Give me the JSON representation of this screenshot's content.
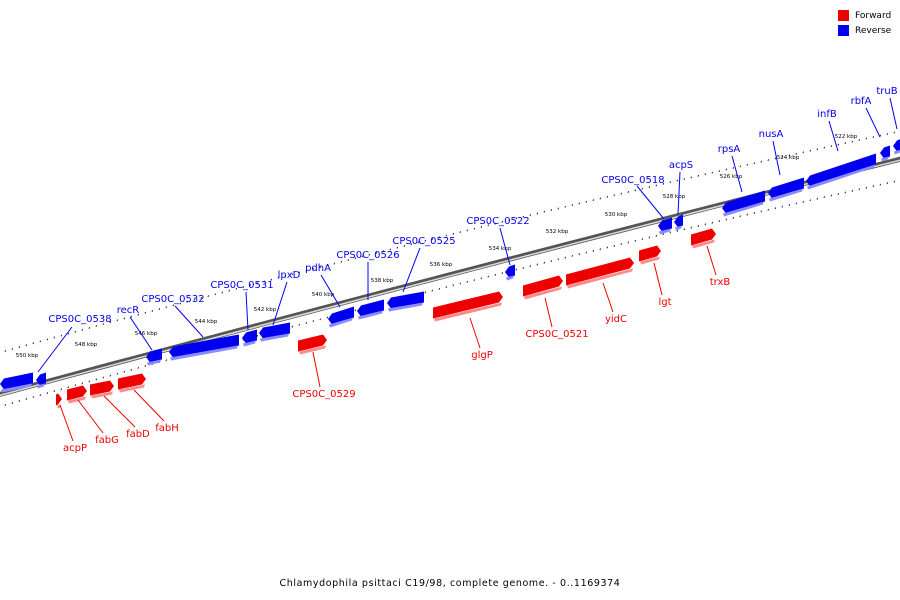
{
  "legend": {
    "forward": {
      "label": "Forward",
      "color": "#ee0000"
    },
    "reverse": {
      "label": "Reverse",
      "color": "#0000ee"
    }
  },
  "caption": "Chlamydophila psittaci C19/98, complete genome. - 0..1169374",
  "ruler_labels": [
    "550 kbp",
    "548 kbp",
    "546 kbp",
    "544 kbp",
    "542 kbp",
    "540 kbp",
    "538 kbp",
    "536 kbp",
    "534 kbp",
    "532 kbp",
    "530 kbp",
    "528 kbp",
    "526 kbp",
    "524 kbp",
    "522 kbp"
  ],
  "genes": [
    {
      "name": "CPS0C_0538",
      "strand": "reverse"
    },
    {
      "name": "recR",
      "strand": "reverse"
    },
    {
      "name": "CPS0C_0532",
      "strand": "reverse"
    },
    {
      "name": "CPS0C_0531",
      "strand": "reverse"
    },
    {
      "name": "lpxD",
      "strand": "reverse"
    },
    {
      "name": "pdhA",
      "strand": "reverse"
    },
    {
      "name": "CPS0C_0526",
      "strand": "reverse"
    },
    {
      "name": "CPS0C_0525",
      "strand": "reverse"
    },
    {
      "name": "CPS0C_0522",
      "strand": "reverse"
    },
    {
      "name": "CPS0C_0518",
      "strand": "reverse"
    },
    {
      "name": "acpS",
      "strand": "reverse"
    },
    {
      "name": "rpsA",
      "strand": "reverse"
    },
    {
      "name": "nusA",
      "strand": "reverse"
    },
    {
      "name": "infB",
      "strand": "reverse"
    },
    {
      "name": "rbfA",
      "strand": "reverse"
    },
    {
      "name": "truB",
      "strand": "reverse"
    },
    {
      "name": "acpP",
      "strand": "forward"
    },
    {
      "name": "fabG",
      "strand": "forward"
    },
    {
      "name": "fabD",
      "strand": "forward"
    },
    {
      "name": "fabH",
      "strand": "forward"
    },
    {
      "name": "CPS0C_0529",
      "strand": "forward"
    },
    {
      "name": "glgP",
      "strand": "forward"
    },
    {
      "name": "CPS0C_0521",
      "strand": "forward"
    },
    {
      "name": "yidC",
      "strand": "forward"
    },
    {
      "name": "lgt",
      "strand": "forward"
    },
    {
      "name": "trxB",
      "strand": "forward"
    }
  ]
}
